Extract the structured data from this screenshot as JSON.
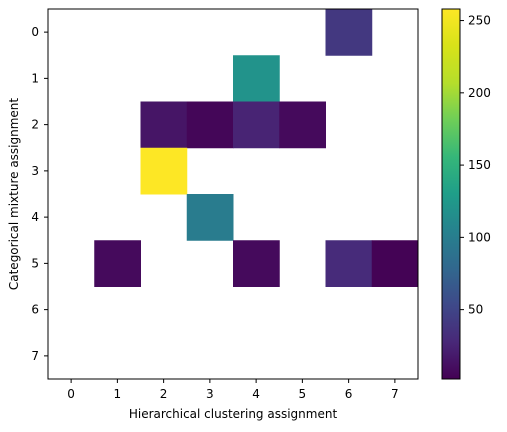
{
  "chart_data": {
    "type": "heatmap",
    "title": "",
    "xlabel": "Hierarchical clustering assignment",
    "ylabel": "Categorical mixture assignment",
    "x_categories": [
      "0",
      "1",
      "2",
      "3",
      "4",
      "5",
      "6",
      "7"
    ],
    "y_categories": [
      "0",
      "1",
      "2",
      "3",
      "4",
      "5",
      "6",
      "7"
    ],
    "values": [
      [
        null,
        null,
        null,
        null,
        null,
        null,
        40,
        null
      ],
      [
        null,
        null,
        null,
        null,
        120,
        null,
        null,
        null
      ],
      [
        null,
        null,
        15,
        5,
        25,
        8,
        null,
        null
      ],
      [
        null,
        null,
        258,
        null,
        null,
        null,
        null,
        null
      ],
      [
        null,
        null,
        null,
        98,
        null,
        null,
        null,
        null
      ],
      [
        null,
        8,
        null,
        null,
        8,
        null,
        30,
        3
      ],
      [
        null,
        null,
        null,
        null,
        null,
        null,
        null,
        null
      ],
      [
        null,
        null,
        null,
        null,
        null,
        null,
        null,
        null
      ]
    ],
    "colorbar": {
      "colormap": "viridis",
      "vmin": 2,
      "vmax": 258,
      "ticks": [
        "50",
        "100",
        "150",
        "200",
        "250"
      ]
    },
    "grid": false
  }
}
